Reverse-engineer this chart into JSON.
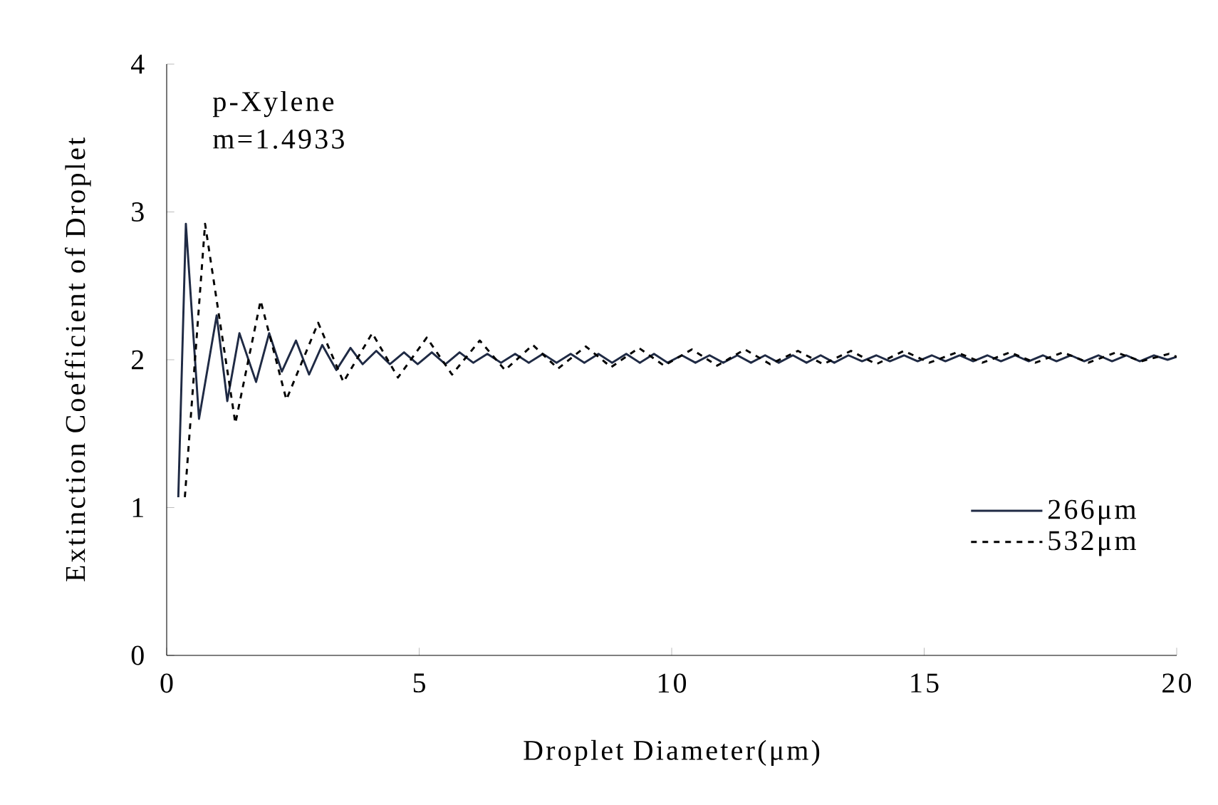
{
  "chart_data": {
    "type": "line",
    "xlabel": "Droplet Diameter(μm)",
    "ylabel": "Extinction Coefficient of Droplet",
    "annotations": [
      "p-Xylene",
      "m=1.4933"
    ],
    "xlim": [
      0,
      20
    ],
    "ylim": [
      0,
      4
    ],
    "xticks": [
      0,
      5,
      10,
      15,
      20
    ],
    "yticks": [
      0,
      1,
      2,
      3,
      4
    ],
    "grid": false,
    "legend": "bottom right",
    "marker": "none",
    "series": [
      {
        "name": "266μm",
        "color": "#1f2a44",
        "line_style": "solid",
        "x": [
          0.23,
          0.38,
          0.64,
          0.99,
          1.2,
          1.44,
          1.77,
          2.03,
          2.28,
          2.56,
          2.82,
          3.08,
          3.36,
          3.64,
          3.88,
          4.15,
          4.42,
          4.7,
          4.97,
          5.25,
          5.52,
          5.8,
          6.07,
          6.35,
          6.62,
          6.9,
          7.17,
          7.45,
          7.72,
          8.0,
          8.27,
          8.55,
          8.82,
          9.1,
          9.37,
          9.65,
          9.92,
          10.2,
          10.47,
          10.75,
          11.02,
          11.3,
          11.57,
          11.85,
          12.12,
          12.4,
          12.67,
          12.95,
          13.22,
          13.5,
          13.77,
          14.05,
          14.32,
          14.6,
          14.87,
          15.15,
          15.42,
          15.7,
          15.97,
          16.25,
          16.52,
          16.8,
          17.07,
          17.35,
          17.62,
          17.9,
          18.17,
          18.45,
          18.72,
          19.0,
          19.27,
          19.55,
          19.82,
          20.0
        ],
        "values": [
          1.07,
          2.92,
          1.6,
          2.3,
          1.72,
          2.18,
          1.85,
          2.18,
          1.92,
          2.13,
          1.9,
          2.1,
          1.93,
          2.08,
          1.97,
          2.06,
          1.97,
          2.05,
          1.97,
          2.05,
          1.97,
          2.05,
          1.98,
          2.04,
          1.98,
          2.04,
          1.98,
          2.04,
          1.98,
          2.04,
          1.98,
          2.04,
          1.98,
          2.04,
          1.98,
          2.04,
          1.98,
          2.03,
          1.98,
          2.03,
          1.98,
          2.03,
          1.98,
          2.03,
          1.98,
          2.03,
          1.98,
          2.03,
          1.98,
          2.03,
          1.99,
          2.03,
          1.99,
          2.03,
          1.99,
          2.03,
          1.99,
          2.03,
          1.99,
          2.03,
          1.99,
          2.03,
          1.99,
          2.03,
          1.99,
          2.03,
          1.99,
          2.03,
          1.99,
          2.03,
          1.99,
          2.03,
          2.0,
          2.02
        ]
      },
      {
        "name": "532μm",
        "color": "#000000",
        "line_style": "dashed",
        "x": [
          0.36,
          0.76,
          1.36,
          1.86,
          2.37,
          3.0,
          3.5,
          4.07,
          4.58,
          5.15,
          5.65,
          6.2,
          6.7,
          7.25,
          7.75,
          8.3,
          8.8,
          9.35,
          9.85,
          10.4,
          10.9,
          11.45,
          11.95,
          12.5,
          13.0,
          13.55,
          14.05,
          14.6,
          15.1,
          15.65,
          16.15,
          16.7,
          17.2,
          17.75,
          18.25,
          18.8,
          19.3,
          19.85,
          20.0
        ],
        "values": [
          1.07,
          2.92,
          1.57,
          2.4,
          1.73,
          2.25,
          1.85,
          2.18,
          1.88,
          2.15,
          1.9,
          2.13,
          1.93,
          2.1,
          1.94,
          2.09,
          1.95,
          2.08,
          1.96,
          2.07,
          1.96,
          2.07,
          1.97,
          2.06,
          1.97,
          2.06,
          1.97,
          2.06,
          1.98,
          2.05,
          1.98,
          2.05,
          1.98,
          2.05,
          1.98,
          2.05,
          1.99,
          2.04,
          2.02
        ]
      }
    ]
  }
}
